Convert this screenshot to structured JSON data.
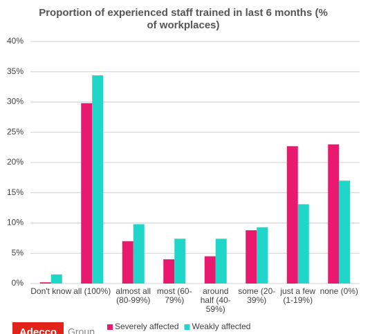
{
  "chart_data": {
    "type": "bar",
    "title": "Proportion of experienced staff trained in last 6 months (% of workplaces)",
    "categories": [
      "Don't know",
      "all (100%)",
      "almost all (80-99%)",
      "most (60-79%)",
      "around half (40-59%)",
      "some (20-39%)",
      "just a few (1-19%)",
      "none (0%)"
    ],
    "series": [
      {
        "name": "Severely affected",
        "color": "#e8196e",
        "values": [
          0.2,
          29.8,
          7.0,
          4.0,
          4.5,
          8.8,
          22.7,
          23.0
        ]
      },
      {
        "name": "Weakly affected",
        "color": "#1fd6c9",
        "values": [
          1.5,
          34.4,
          9.8,
          7.4,
          7.4,
          9.3,
          13.1,
          17.0
        ]
      }
    ],
    "ylim": [
      0,
      40
    ],
    "yticks": [
      {
        "value": 0,
        "label": "0%"
      },
      {
        "value": 5,
        "label": "5%"
      },
      {
        "value": 10,
        "label": "10%"
      },
      {
        "value": 15,
        "label": "15%"
      },
      {
        "value": 20,
        "label": "20%"
      },
      {
        "value": 25,
        "label": "25%"
      },
      {
        "value": 30,
        "label": "30%"
      },
      {
        "value": 35,
        "label": "35%"
      },
      {
        "value": 40,
        "label": "40%"
      }
    ],
    "grid": true,
    "legend": "bottom"
  },
  "logo": {
    "brand": "Adecco",
    "suffix": "Group"
  }
}
